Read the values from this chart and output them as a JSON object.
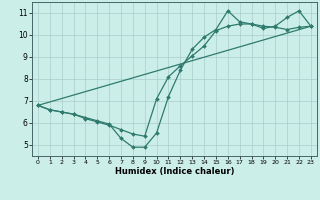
{
  "xlabel": "Humidex (Indice chaleur)",
  "bg_color": "#cceee8",
  "grid_color": "#aacccc",
  "line_color": "#2e7b6e",
  "xlim": [
    -0.5,
    23.5
  ],
  "ylim": [
    4.5,
    11.5
  ],
  "xticks": [
    0,
    1,
    2,
    3,
    4,
    5,
    6,
    7,
    8,
    9,
    10,
    11,
    12,
    13,
    14,
    15,
    16,
    17,
    18,
    19,
    20,
    21,
    22,
    23
  ],
  "yticks": [
    5,
    6,
    7,
    8,
    9,
    10,
    11
  ],
  "line1_x": [
    0,
    1,
    2,
    3,
    4,
    5,
    6,
    7,
    8,
    9,
    10,
    11,
    12,
    13,
    14,
    15,
    16,
    17,
    18,
    19,
    20,
    21,
    22,
    23
  ],
  "line1_y": [
    6.8,
    6.6,
    6.5,
    6.4,
    6.25,
    6.1,
    5.95,
    5.3,
    4.9,
    4.9,
    5.55,
    7.2,
    8.4,
    9.35,
    9.9,
    10.25,
    11.1,
    10.6,
    10.5,
    10.3,
    10.4,
    10.8,
    11.1,
    10.4
  ],
  "line2_x": [
    0,
    1,
    2,
    3,
    4,
    5,
    6,
    7,
    8,
    9,
    10,
    11,
    12,
    13,
    14,
    15,
    16,
    17,
    18,
    19,
    20,
    21,
    22,
    23
  ],
  "line2_y": [
    6.8,
    6.6,
    6.5,
    6.4,
    6.2,
    6.05,
    5.9,
    5.7,
    5.5,
    5.4,
    7.1,
    8.1,
    8.6,
    9.05,
    9.5,
    10.2,
    10.4,
    10.5,
    10.5,
    10.4,
    10.35,
    10.25,
    10.35,
    10.4
  ],
  "line3_x": [
    0,
    23
  ],
  "line3_y": [
    6.8,
    10.4
  ]
}
